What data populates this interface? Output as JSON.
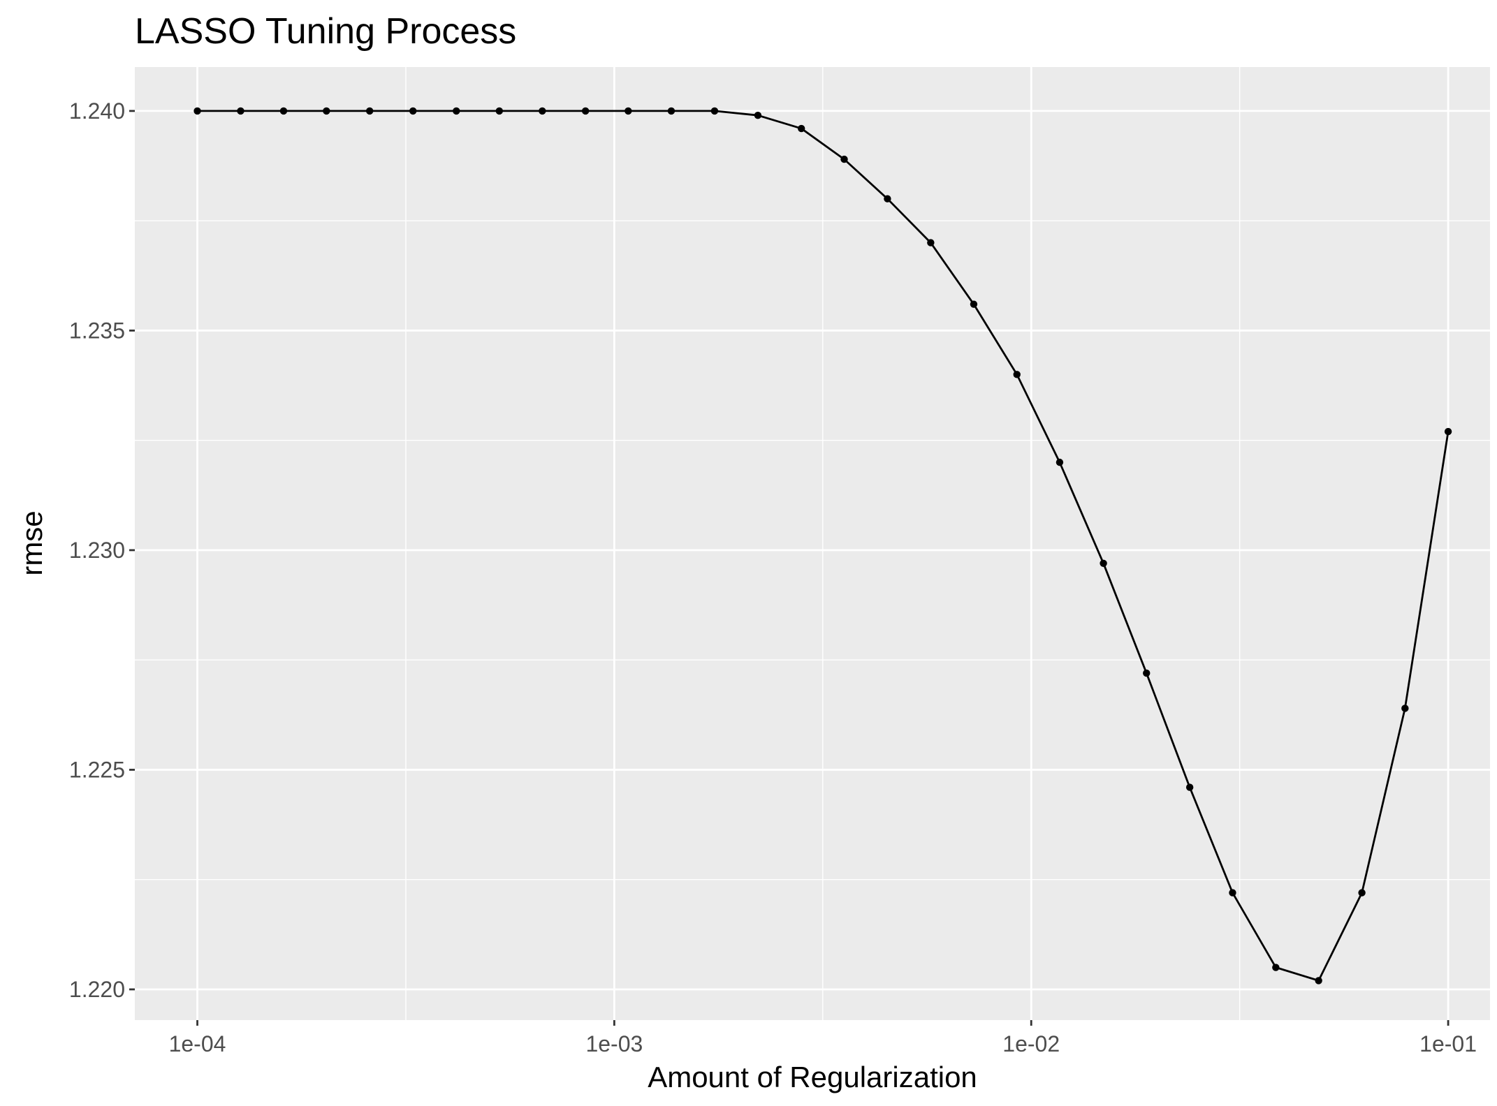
{
  "chart_data": {
    "type": "line",
    "title": "LASSO Tuning Process",
    "xlabel": "Amount of Regularization",
    "ylabel": "rmse",
    "x_scale": "log10",
    "xlim": [
      7.08e-05,
      0.126
    ],
    "ylim": [
      1.2193,
      1.241
    ],
    "x_ticks": [
      0.0001,
      0.001,
      0.01,
      0.1
    ],
    "x_tick_labels": [
      "1e-04",
      "1e-03",
      "1e-02",
      "1e-01"
    ],
    "y_ticks": [
      1.22,
      1.225,
      1.23,
      1.235,
      1.24
    ],
    "y_tick_labels": [
      "1.220",
      "1.225",
      "1.230",
      "1.235",
      "1.240"
    ],
    "grid": true,
    "colors": {
      "panel_background": "#ebebeb",
      "grid_line": "#ffffff",
      "series": "#000000",
      "tick_label": "#4d4d4d",
      "tick_mark": "#333333"
    },
    "series": [
      {
        "x": [
          0.0001,
          0.000127,
          0.000161,
          0.000204,
          0.000259,
          0.000329,
          0.000418,
          0.00053,
          0.000672,
          0.000853,
          0.00108,
          0.00137,
          0.00174,
          0.00221,
          0.00281,
          0.00356,
          0.00452,
          0.00574,
          0.00728,
          0.00924,
          0.0117,
          0.0149,
          0.0189,
          0.024,
          0.0304,
          0.0386,
          0.0489,
          0.0621,
          0.0788,
          0.1
        ],
        "y": [
          1.24,
          1.24,
          1.24,
          1.24,
          1.24,
          1.24,
          1.24,
          1.24,
          1.24,
          1.24,
          1.24,
          1.24,
          1.24,
          1.2399,
          1.2396,
          1.2389,
          1.238,
          1.237,
          1.2356,
          1.234,
          1.232,
          1.2297,
          1.2272,
          1.2246,
          1.2222,
          1.2205,
          1.2202,
          1.2222,
          1.2264,
          1.2327
        ]
      }
    ]
  }
}
